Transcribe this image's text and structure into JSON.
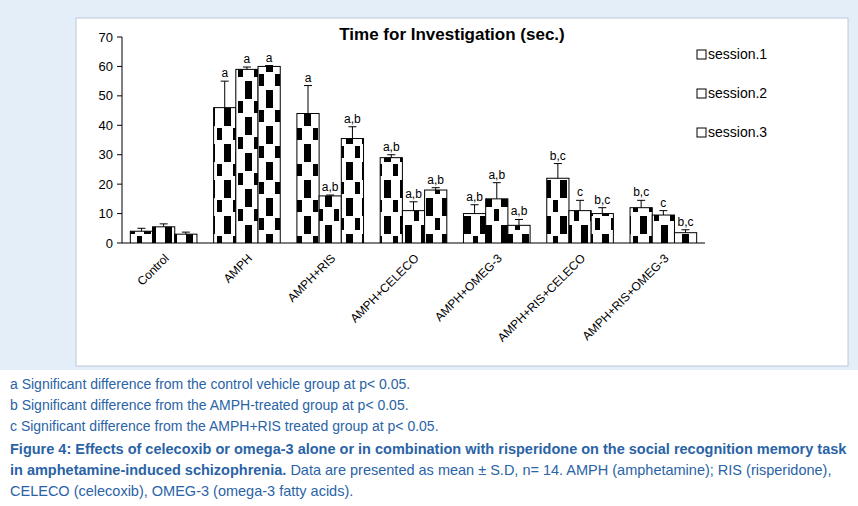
{
  "chart_data": {
    "type": "bar",
    "title": "Time for Investigation (sec.)",
    "categories": [
      "Control",
      "AMPH",
      "AMPH+RIS",
      "AMPH+CELECO",
      "AMPH+OMEG-3",
      "AMPH+RIS+CELECO",
      "AMPH+RIS+OMEG-3"
    ],
    "series": [
      {
        "name": "session.1",
        "color": "#ffffff",
        "values": [
          4,
          46,
          44,
          29,
          10,
          22,
          12
        ],
        "errors": [
          1,
          9,
          9.5,
          1,
          3,
          5,
          2.5
        ],
        "significance": [
          null,
          "a",
          "a",
          "a,b",
          "a,b",
          "b,c",
          "b,c"
        ]
      },
      {
        "name": "session.2",
        "color": "#ffffff",
        "values": [
          5.5,
          59,
          16,
          11,
          15,
          11,
          9.5
        ],
        "errors": [
          1,
          0.8,
          0.3,
          3,
          5.5,
          3.5,
          1.5
        ],
        "significance": [
          null,
          "a",
          "a,b",
          "a,b",
          "a,b",
          "c",
          "c"
        ]
      },
      {
        "name": "session.3",
        "color": "#ffffff",
        "values": [
          3,
          60,
          35.5,
          18,
          6,
          10,
          3.5
        ],
        "errors": [
          0.7,
          0.3,
          4,
          0.8,
          2,
          2,
          1
        ],
        "significance": [
          null,
          "a",
          "a,b",
          "a,b",
          "a,b",
          "b,c",
          "b,c"
        ]
      }
    ],
    "ylim": [
      0,
      70
    ],
    "yticks": [
      0,
      10,
      20,
      30,
      40,
      50,
      60,
      70
    ],
    "grid": false,
    "legend": "right",
    "notes": [
      "a Significant difference from the control vehicle group at p< 0.05.",
      "b Significant difference from the AMPH-treated group at p< 0.05.",
      "c Significant difference from the AMPH+RIS treated group at p< 0.05."
    ],
    "caption": {
      "title": "Figure 4: Effects of celecoxib or omega-3 alone or in combination with risperidone on the social recognition memory task in amphetamine-induced schizophrenia.",
      "text": "Data are presented as mean ± S.D, n= 14. AMPH (amphetamine); RIS (risperidone), CELECO (celecoxib), OMEG-3 (omega-3 fatty acids)."
    }
  }
}
